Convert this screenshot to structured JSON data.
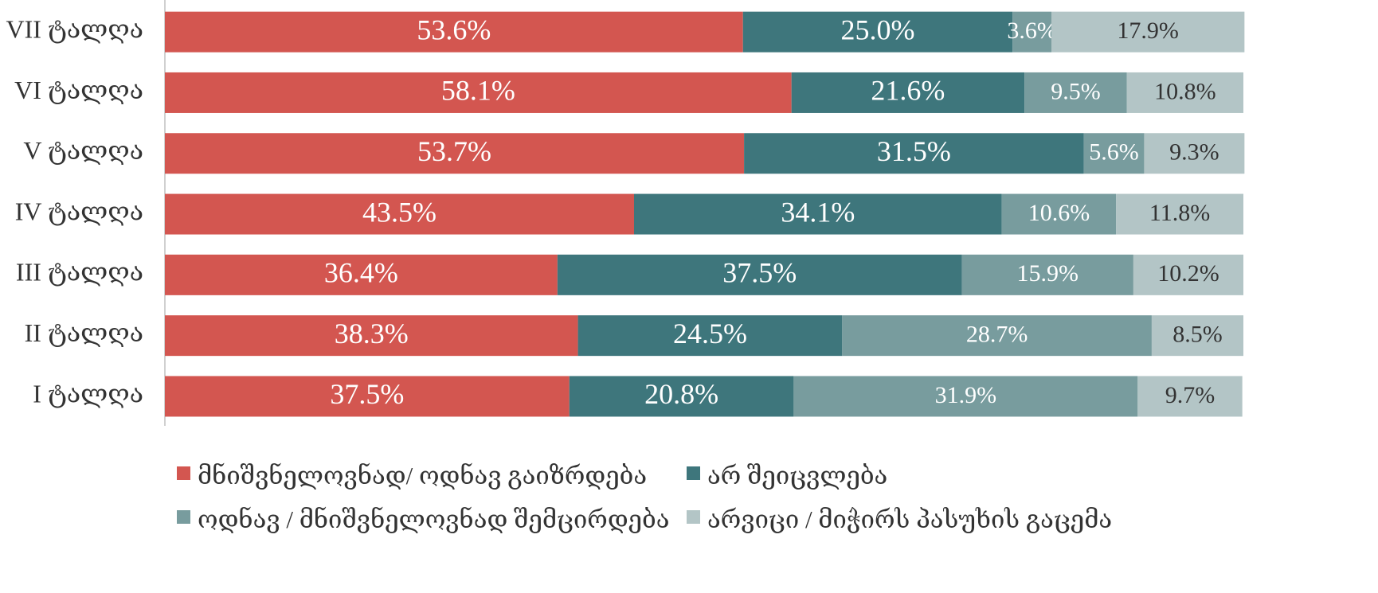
{
  "chart_data": {
    "type": "stacked_barh",
    "categories": [
      "VII ტალღა",
      "VI ტალღა",
      "V ტალღა",
      "IV ტალღა",
      "III ტალღა",
      "II ტალღა",
      "I ტალღა"
    ],
    "xlim": [
      0,
      100
    ],
    "series": [
      {
        "name": "მნიშვნელოვნად/ ოდნავ გაიზრდება",
        "color": "#d35650",
        "label_color": "#ffffff",
        "values": [
          53.6,
          58.1,
          53.7,
          43.5,
          36.4,
          38.3,
          37.5
        ],
        "value_labels": [
          "53.6%",
          "58.1%",
          "53.7%",
          "43.5%",
          "36.4%",
          "38.3%",
          "37.5%"
        ]
      },
      {
        "name": "არ შეიცვლება",
        "color": "#3e767c",
        "label_color": "#ffffff",
        "values": [
          25.0,
          21.6,
          31.5,
          34.1,
          37.5,
          24.5,
          20.8
        ],
        "value_labels": [
          "25.0%",
          "21.6%",
          "31.5%",
          "34.1%",
          "37.5%",
          "24.5%",
          "20.8%"
        ]
      },
      {
        "name": "ოდნავ / მნიშვნელოვნად შემცირდება",
        "color": "#789c9e",
        "label_color": "#ffffff",
        "values": [
          3.6,
          9.5,
          5.6,
          10.6,
          15.9,
          28.7,
          31.9
        ],
        "value_labels": [
          "3.6%",
          "9.5%",
          "5.6%",
          "10.6%",
          "15.9%",
          "28.7%",
          "31.9%"
        ]
      },
      {
        "name": "არვიცი / მიჭირს პასუხის გაცემა",
        "color": "#b3c5c6",
        "label_color": "#333333",
        "values": [
          17.9,
          10.8,
          9.3,
          11.8,
          10.2,
          8.5,
          9.7
        ],
        "value_labels": [
          "17.9%",
          "10.8%",
          "9.3%",
          "11.8%",
          "10.2%",
          "8.5%",
          "9.7%"
        ]
      }
    ]
  }
}
